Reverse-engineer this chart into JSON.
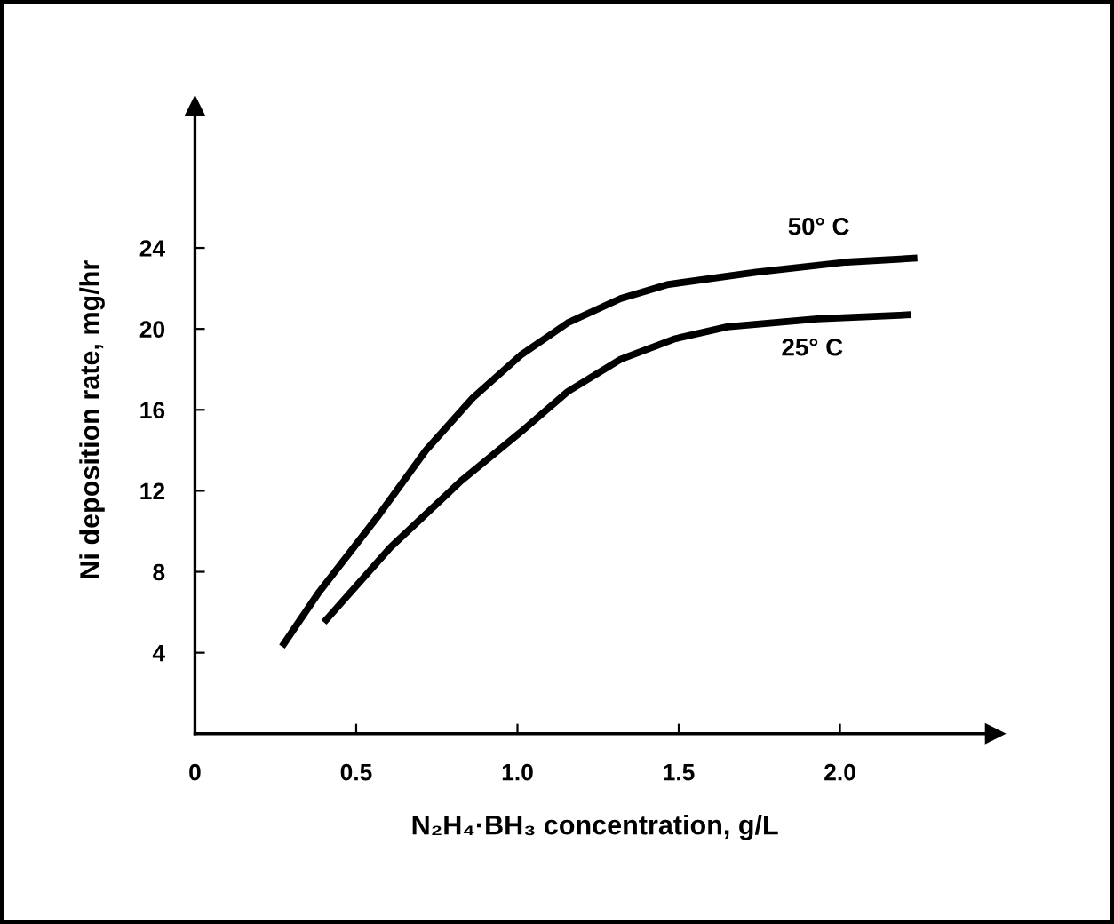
{
  "chart_data": {
    "type": "line",
    "xlabel": "N₂H₄·BH₃ concentration, g/L",
    "ylabel": "Ni deposition rate, mg/hr",
    "xlim": [
      0,
      2.48
    ],
    "ylim": [
      0,
      31
    ],
    "xticks": [
      0,
      0.5,
      {
        "value": 1.0,
        "label": "1.0"
      },
      1.5,
      {
        "value": 2.0,
        "label": "2.0"
      }
    ],
    "yticks": [
      4,
      8,
      12,
      16,
      20,
      24
    ],
    "grid": false,
    "legend": false,
    "marker": "none",
    "line_style": "solid",
    "series": [
      {
        "name": "50° C",
        "color": "#000000",
        "x": [
          0.27,
          0.385,
          0.57,
          0.716,
          0.862,
          1.01,
          1.156,
          1.32,
          1.468,
          1.74,
          2.02,
          2.24
        ],
        "values": [
          4.3,
          7.0,
          10.8,
          14.0,
          16.6,
          18.7,
          20.3,
          21.5,
          22.2,
          22.8,
          23.3,
          23.5
        ]
      },
      {
        "name": "25° C",
        "color": "#000000",
        "x": [
          0.4,
          0.606,
          0.826,
          1.01,
          1.156,
          1.32,
          1.486,
          1.65,
          1.93,
          2.22
        ],
        "values": [
          5.5,
          9.2,
          12.5,
          14.9,
          16.9,
          18.5,
          19.5,
          20.1,
          20.5,
          20.7
        ]
      }
    ]
  }
}
